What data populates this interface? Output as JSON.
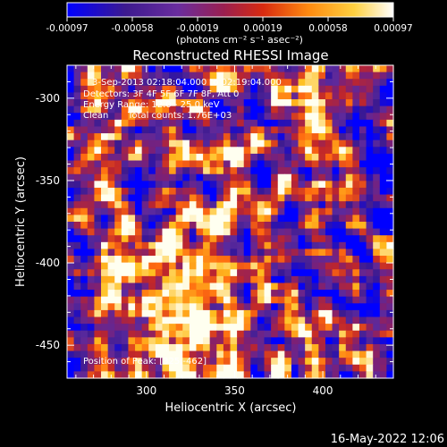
{
  "colorbar": {
    "ticks": [
      "-0.00097",
      "-0.00058",
      "-0.00019",
      "0.00019",
      "0.00058",
      "0.00097"
    ],
    "unit_label": "(photons cm⁻² s⁻¹ asec⁻²)"
  },
  "chart_data": {
    "type": "heatmap",
    "title": "Reconstructed RHESSI Image",
    "xlabel": "Heliocentric X (arcsec)",
    "ylabel": "Heliocentric Y (arcsec)",
    "xlim": [
      255,
      440
    ],
    "ylim": [
      -470,
      -280
    ],
    "xticks": [
      300,
      350,
      400
    ],
    "yticks": [
      -300,
      -350,
      -400,
      -450
    ],
    "colorbar_range": [
      -0.00097,
      0.00097
    ],
    "annotations": [
      "3-Sep-2013 02:18:04.000 to 02:19:04.000",
      "Detectors: 3F 4F 5F 6F 7F 8F, Att 0",
      "Energy Range: 12.0 - 25.0 keV",
      "Clean",
      "Total counts: 1.76E+03",
      "Position of Peak: [325,-462]"
    ]
  },
  "footer": {
    "timestamp": "16-May-2022 12:06"
  },
  "colors": {
    "colormap": [
      "#0000ff",
      "#3d1a8f",
      "#5b2a9e",
      "#7a2078",
      "#c0262a",
      "#ff6a10",
      "#ffc020",
      "#fffff0"
    ]
  }
}
